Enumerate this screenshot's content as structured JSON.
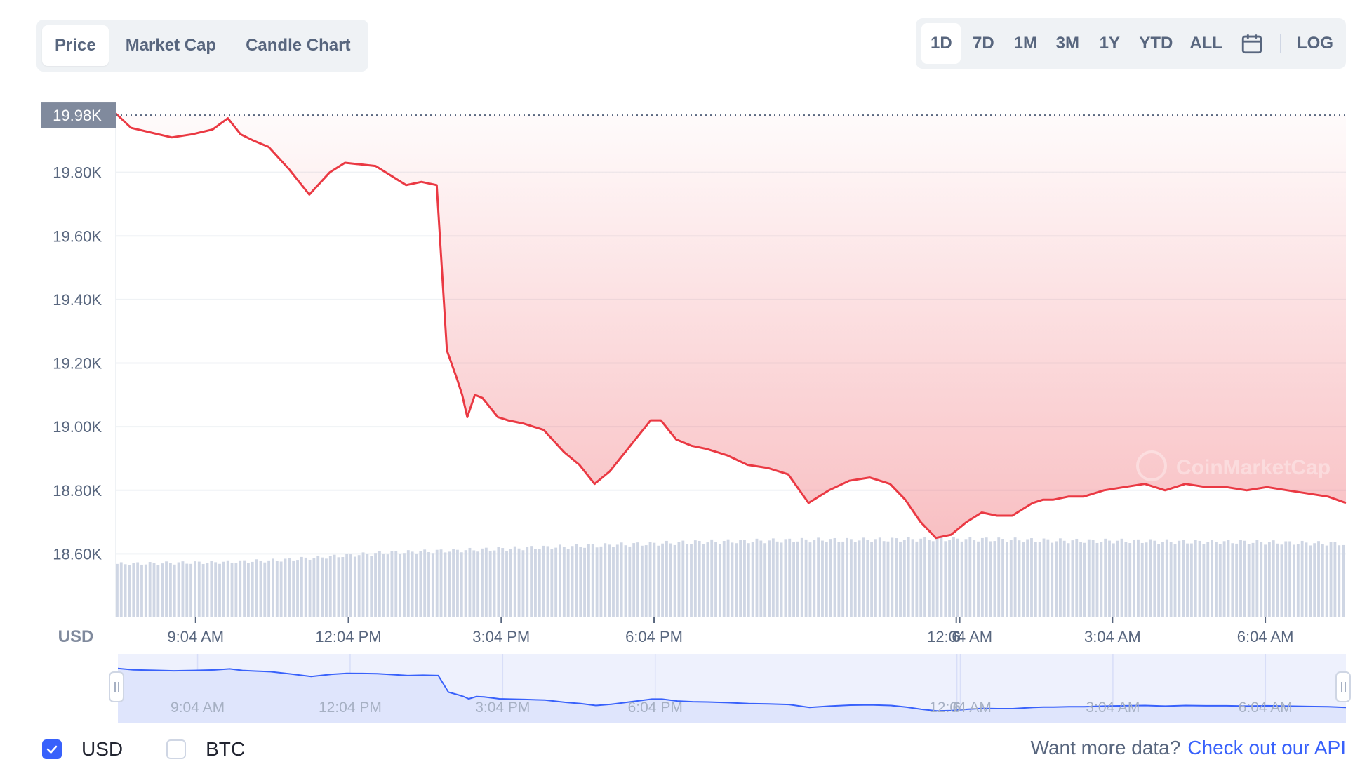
{
  "tabs": [
    {
      "label": "Price",
      "active": true
    },
    {
      "label": "Market Cap",
      "active": false
    },
    {
      "label": "Candle Chart",
      "active": false
    }
  ],
  "ranges": [
    {
      "label": "1D",
      "active": true
    },
    {
      "label": "7D",
      "active": false
    },
    {
      "label": "1M",
      "active": false
    },
    {
      "label": "3M",
      "active": false
    },
    {
      "label": "1Y",
      "active": false
    },
    {
      "label": "YTD",
      "active": false
    },
    {
      "label": "ALL",
      "active": false
    }
  ],
  "calendar_icon": "calendar-icon",
  "log_label": "LOG",
  "currency_options": [
    {
      "label": "USD",
      "checked": true
    },
    {
      "label": "BTC",
      "checked": false
    }
  ],
  "api": {
    "prefix": "Want more data?",
    "link": "Check out our API"
  },
  "colors": {
    "line": "#ea3943",
    "navigator_line": "#3861fb",
    "accent": "#3861fb",
    "volume": "#cfd6e4"
  },
  "chart_data": {
    "type": "area",
    "currency_label": "USD",
    "current_price_label": "19.98K",
    "current_price": 19980,
    "ylim": [
      18400,
      20000
    ],
    "ytick_labels": [
      "19.80K",
      "19.60K",
      "19.40K",
      "19.20K",
      "19.00K",
      "18.80K",
      "18.60K"
    ],
    "ytick_values": [
      19800,
      19600,
      19400,
      19200,
      19000,
      18800,
      18600
    ],
    "xlim_hours": [
      7.5,
      31.65
    ],
    "xtick_labels": [
      "9:04 AM",
      "12:04 PM",
      "3:04 PM",
      "6:04 PM",
      "6",
      "12:04 AM",
      "3:04 AM",
      "6:04 AM"
    ],
    "xtick_hours": [
      9.067,
      12.067,
      15.067,
      18.067,
      24.0,
      24.067,
      27.067,
      30.067
    ],
    "series": [
      {
        "values_x_hours": [
          7.5,
          7.8,
          8.2,
          8.6,
          9.0,
          9.4,
          9.7,
          9.95,
          10.2,
          10.5,
          10.9,
          11.3,
          11.7,
          12.0,
          12.3,
          12.6,
          12.9,
          13.2,
          13.5,
          13.8,
          14.0,
          14.2,
          14.3,
          14.4,
          14.55,
          14.7,
          14.85,
          15.0,
          15.2,
          15.5,
          15.9,
          16.3,
          16.6,
          16.9,
          17.2,
          17.5,
          17.8,
          18.0,
          18.2,
          18.5,
          18.8,
          19.1,
          19.5,
          19.9,
          20.3,
          20.7,
          21.1,
          21.5,
          21.9,
          22.3,
          22.7,
          23.0,
          23.3,
          23.6,
          23.9,
          24.2,
          24.5,
          24.8,
          25.1,
          25.3,
          25.5,
          25.7,
          25.9,
          26.2,
          26.5,
          26.9,
          27.3,
          27.7,
          28.1,
          28.5,
          28.9,
          29.3,
          29.7,
          30.1,
          30.5,
          30.9,
          31.3,
          31.65
        ],
        "values_y": [
          19985,
          19940,
          19925,
          19910,
          19920,
          19935,
          19970,
          19920,
          19900,
          19880,
          19810,
          19730,
          19800,
          19830,
          19825,
          19820,
          19790,
          19760,
          19770,
          19760,
          19240,
          19150,
          19100,
          19030,
          19100,
          19090,
          19060,
          19030,
          19020,
          19010,
          18990,
          18920,
          18880,
          18820,
          18860,
          18920,
          18980,
          19020,
          19020,
          18960,
          18940,
          18930,
          18910,
          18880,
          18870,
          18850,
          18760,
          18800,
          18830,
          18840,
          18820,
          18770,
          18700,
          18650,
          18660,
          18700,
          18730,
          18720,
          18720,
          18740,
          18760,
          18770,
          18770,
          18780,
          18780,
          18800,
          18810,
          18820,
          18800,
          18820,
          18810,
          18810,
          18800,
          18810,
          18800,
          18790,
          18780,
          18760
        ]
      }
    ],
    "volume_relative": [
      0.58,
      0.59,
      0.6,
      0.62,
      0.66,
      0.7,
      0.72,
      0.74,
      0.76,
      0.78,
      0.8,
      0.82,
      0.83,
      0.84,
      0.84,
      0.85,
      0.85,
      0.84,
      0.83,
      0.83,
      0.82,
      0.82,
      0.81,
      0.8
    ],
    "navigator_xtick_labels": [
      "9:04 AM",
      "12:04 PM",
      "3:04 PM",
      "6:04 PM",
      "6",
      "12:04 AM",
      "3:04 AM",
      "6:04 AM"
    ],
    "watermark": "CoinMarketCap"
  }
}
